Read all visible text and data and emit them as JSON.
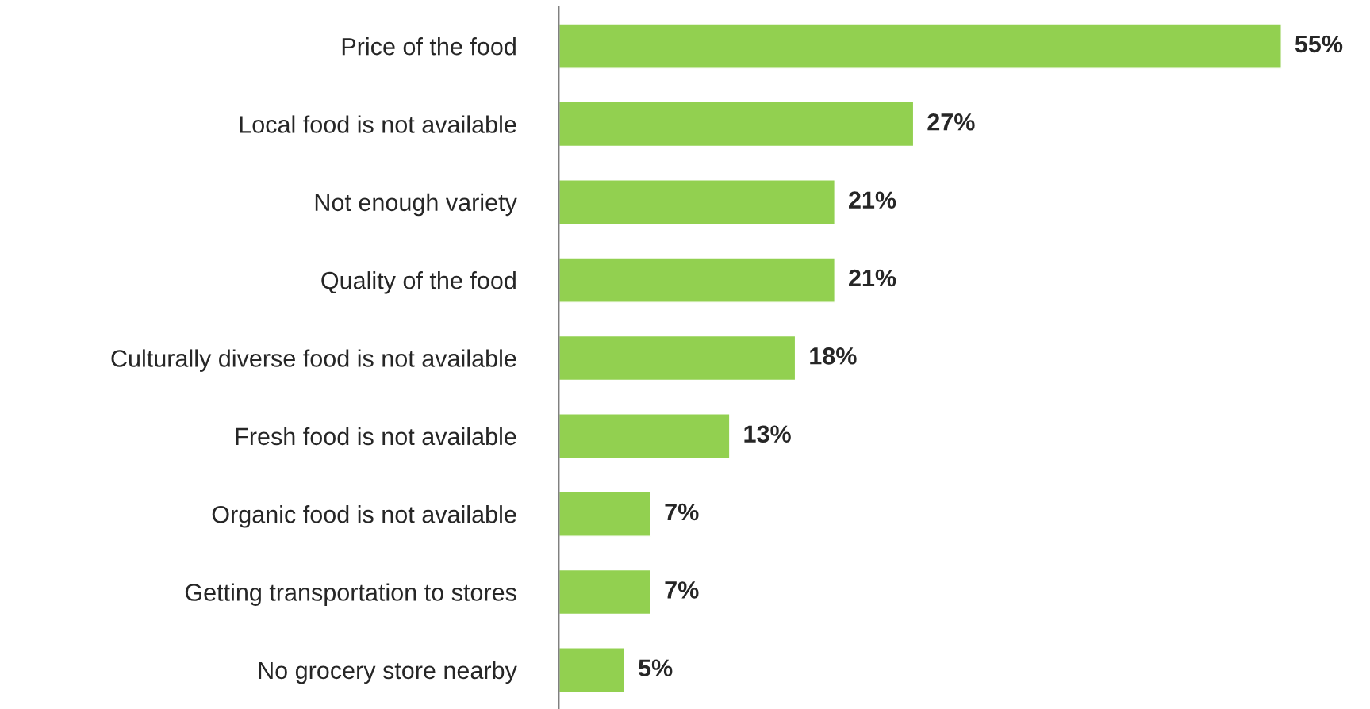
{
  "chart_data": {
    "type": "bar",
    "orientation": "horizontal",
    "categories": [
      "Price of the food",
      "Local food is not available",
      "Not enough variety",
      "Quality of the food",
      "Culturally diverse food is not available",
      "Fresh food is not available",
      "Organic food is not available",
      "Getting transportation to stores",
      "No grocery store nearby"
    ],
    "values": [
      55,
      27,
      21,
      21,
      18,
      13,
      7,
      7,
      5
    ],
    "value_labels": [
      "55%",
      "27%",
      "21%",
      "21%",
      "18%",
      "13%",
      "7%",
      "7%",
      "5%"
    ],
    "color": "#92d050",
    "grid": false,
    "legend": false
  }
}
